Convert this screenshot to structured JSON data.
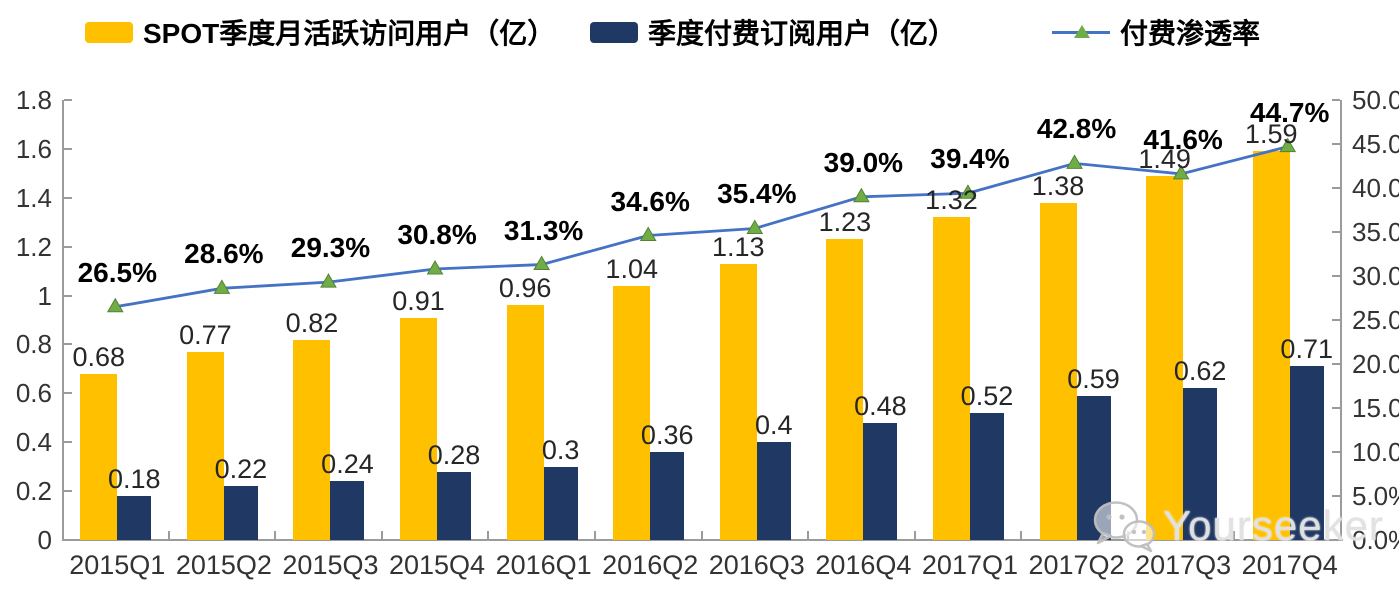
{
  "legend": [
    {
      "label": "SPOT季度月活跃访问用户（亿）",
      "type": "bar",
      "color": "#FFC000"
    },
    {
      "label": "季度付费订阅用户（亿）",
      "type": "bar",
      "color": "#1F3864"
    },
    {
      "label": "付费渗透率",
      "type": "line",
      "color": "#4472C4",
      "marker_color": "#70AD47"
    }
  ],
  "chart_data": {
    "type": "bar+line combo",
    "categories": [
      "2015Q1",
      "2015Q2",
      "2015Q3",
      "2015Q4",
      "2016Q1",
      "2016Q2",
      "2016Q3",
      "2016Q4",
      "2017Q1",
      "2017Q2",
      "2017Q3",
      "2017Q4"
    ],
    "series": [
      {
        "name": "SPOT季度月活跃访问用户（亿）",
        "type": "bar",
        "axis": "left",
        "color": "#FFC000",
        "values": [
          0.68,
          0.77,
          0.82,
          0.91,
          0.96,
          1.04,
          1.13,
          1.23,
          1.32,
          1.38,
          1.49,
          1.59
        ],
        "labels": [
          "0.68",
          "0.77",
          "0.82",
          "0.91",
          "0.96",
          "1.04",
          "1.13",
          "1.23",
          "1.32",
          "1.38",
          "1.49",
          "1.59"
        ]
      },
      {
        "name": "季度付费订阅用户（亿）",
        "type": "bar",
        "axis": "left",
        "color": "#1F3864",
        "values": [
          0.18,
          0.22,
          0.24,
          0.28,
          0.3,
          0.36,
          0.4,
          0.48,
          0.52,
          0.59,
          0.62,
          0.71
        ],
        "labels": [
          "0.18",
          "0.22",
          "0.24",
          "0.28",
          "0.3",
          "0.36",
          "0.4",
          "0.48",
          "0.52",
          "0.59",
          "0.62",
          "0.71"
        ]
      },
      {
        "name": "付费渗透率",
        "type": "line",
        "axis": "right",
        "color": "#4472C4",
        "marker_color": "#70AD47",
        "marker_edge_color": "#548235",
        "values": [
          26.5,
          28.6,
          29.3,
          30.8,
          31.3,
          34.6,
          35.4,
          39.0,
          39.4,
          42.8,
          41.6,
          44.7
        ],
        "labels": [
          "26.5%",
          "28.6%",
          "29.3%",
          "30.8%",
          "31.3%",
          "34.6%",
          "35.4%",
          "39.0%",
          "39.4%",
          "42.8%",
          "41.6%",
          "44.7%"
        ]
      }
    ],
    "left_axis": {
      "min": 0,
      "max": 1.8,
      "ticks": [
        "0",
        "0.2",
        "0.4",
        "0.6",
        "0.8",
        "1",
        "1.2",
        "1.4",
        "1.6",
        "1.8"
      ]
    },
    "right_axis": {
      "min": 0,
      "max": 50,
      "ticks": [
        "0.0%",
        "5.0%",
        "10.0%",
        "15.0%",
        "20.0%",
        "25.0%",
        "30.0%",
        "35.0%",
        "40.0%",
        "45.0%",
        "50.0%"
      ]
    },
    "grid": "off",
    "legend_position": "top"
  },
  "colors": {
    "axis": "#9b9b9b",
    "value_label": "#262626",
    "percent_label": "#000000"
  },
  "watermark": {
    "text": "Yourseeker",
    "icon": "wechat-icon"
  }
}
